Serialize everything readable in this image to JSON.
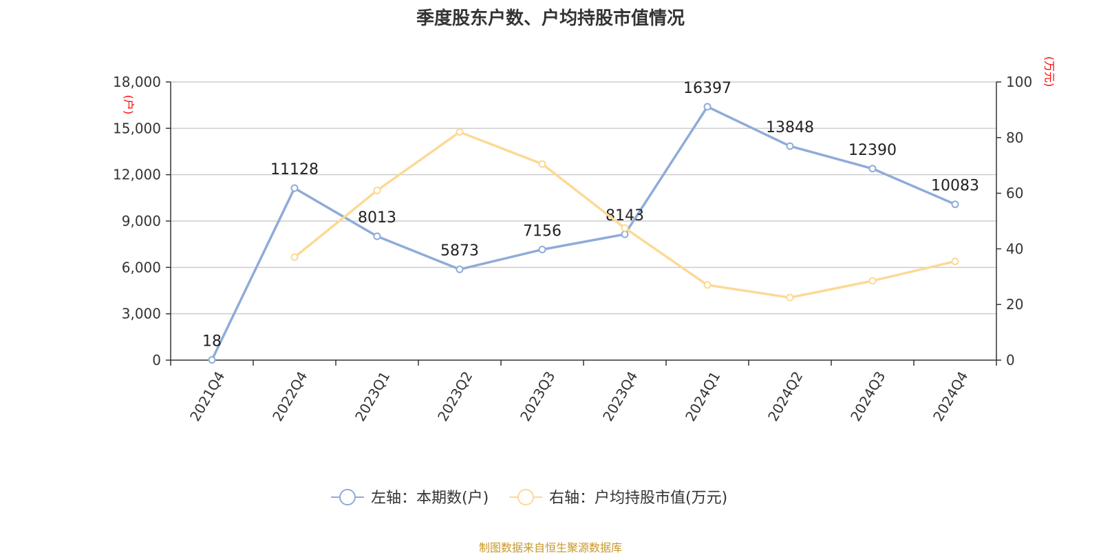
{
  "chart_data": {
    "type": "line",
    "title": "季度股东户数、户均持股市值情况",
    "categories": [
      "2021Q4",
      "2022Q4",
      "2023Q1",
      "2023Q2",
      "2023Q3",
      "2023Q4",
      "2024Q1",
      "2024Q2",
      "2024Q3",
      "2024Q4"
    ],
    "y_left": {
      "unit": "(户)",
      "range": [
        0,
        18000
      ],
      "ticks": [
        "0",
        "3,000",
        "6,000",
        "9,000",
        "12,000",
        "15,000",
        "18,000"
      ]
    },
    "y_right": {
      "unit": "(万元)",
      "range": [
        0,
        100
      ],
      "ticks": [
        "0",
        "20",
        "40",
        "60",
        "80",
        "100"
      ]
    },
    "series": [
      {
        "name": "左轴：本期数(户)",
        "axis": "left",
        "color": "#8fabd8",
        "values": [
          18,
          11128,
          8013,
          5873,
          7156,
          8143,
          16397,
          13848,
          12390,
          10083
        ],
        "show_labels": true
      },
      {
        "name": "右轴：户均持股市值(万元)",
        "axis": "right",
        "color": "#fcd995",
        "values": [
          null,
          37,
          61,
          82,
          70.5,
          47.5,
          27,
          22.5,
          28.5,
          35.5
        ],
        "show_labels": false
      }
    ],
    "grid": true,
    "legend_position": "bottom-center"
  },
  "source": "制图数据来自恒生聚源数据库"
}
